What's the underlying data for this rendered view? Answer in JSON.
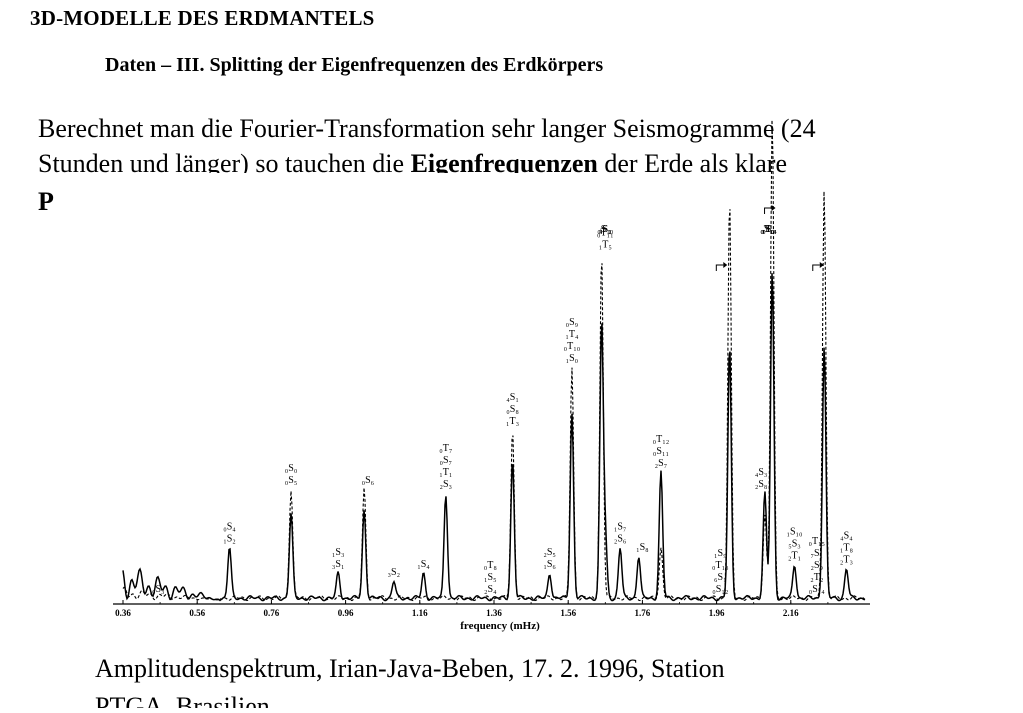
{
  "slide": {
    "title": "3D-MODELLE DES ERDMANTELS",
    "subtitle": "Daten – III. Splitting der Eigenfrequenzen des Erdkörpers"
  },
  "body": {
    "line1": "Berechnet man die Fourier-Transformation sehr langer Seismogramme (24",
    "line2_pre": "Stunden und länger) so tauchen die ",
    "line2_bold": "Eigenfrequenzen",
    "line2_post": " der Erde als klare",
    "line3_bold": "P"
  },
  "caption": {
    "line1": "Amplitudenspektrum, Irian-Java-Beben, 17. 2. 1996, Station",
    "line2": "PTGA, Brasilien"
  },
  "chart_data": {
    "type": "line",
    "xlabel": "frequency (mHz)",
    "x_ticks": [
      "0.36",
      "0.56",
      "0.76",
      "0.96",
      "1.16",
      "1.36",
      "1.56",
      "1.76",
      "1.96",
      "2.16"
    ],
    "xlim": [
      0.36,
      2.36
    ],
    "series": [
      {
        "style": "solid",
        "peaks": [
          {
            "f": 0.647,
            "amp": 0.12
          },
          {
            "f": 0.813,
            "amp": 0.2
          },
          {
            "f": 0.94,
            "amp": 0.06
          },
          {
            "f": 1.01,
            "amp": 0.21
          },
          {
            "f": 1.09,
            "amp": 0.04
          },
          {
            "f": 1.17,
            "amp": 0.06
          },
          {
            "f": 1.23,
            "amp": 0.25
          },
          {
            "f": 1.41,
            "amp": 0.33
          },
          {
            "f": 1.57,
            "amp": 0.44
          },
          {
            "f": 1.65,
            "amp": 0.65
          },
          {
            "f": 1.81,
            "amp": 0.3
          },
          {
            "f": 1.995,
            "amp": 0.6
          },
          {
            "f": 2.11,
            "amp": 0.78
          },
          {
            "f": 2.25,
            "amp": 0.6
          },
          {
            "f": 2.09,
            "amp": 0.25
          },
          {
            "f": 1.7,
            "amp": 0.12
          },
          {
            "f": 1.66,
            "amp": 0.14
          },
          {
            "f": 1.75,
            "amp": 0.1
          },
          {
            "f": 1.51,
            "amp": 0.06
          },
          {
            "f": 2.17,
            "amp": 0.08
          },
          {
            "f": 2.31,
            "amp": 0.07
          }
        ]
      },
      {
        "style": "dashed",
        "peaks": [
          {
            "f": 0.813,
            "amp": 0.26
          },
          {
            "f": 1.01,
            "amp": 0.26
          },
          {
            "f": 1.41,
            "amp": 0.4
          },
          {
            "f": 1.57,
            "amp": 0.55
          },
          {
            "f": 1.65,
            "amp": 0.82
          },
          {
            "f": 1.995,
            "amp": 0.95
          },
          {
            "f": 2.11,
            "amp": 1.15
          },
          {
            "f": 2.25,
            "amp": 0.98
          },
          {
            "f": 1.81,
            "amp": 0.12
          },
          {
            "f": 2.09,
            "amp": 0.2
          }
        ]
      }
    ],
    "peak_labels": [
      {
        "f": 0.455,
        "lines": [
          "₀S₃"
        ]
      },
      {
        "f": 0.647,
        "lines": [
          "₀S₄",
          "₁S₂"
        ]
      },
      {
        "f": 0.813,
        "lines": [
          "₀S₀",
          "₀S₅"
        ]
      },
      {
        "f": 0.94,
        "lines": [
          "₁S₃",
          "₃S₁"
        ]
      },
      {
        "f": 1.02,
        "lines": [
          "₀S₆"
        ]
      },
      {
        "f": 1.09,
        "lines": [
          "₃S₂"
        ]
      },
      {
        "f": 1.17,
        "lines": [
          "₁S₄"
        ]
      },
      {
        "f": 1.23,
        "lines": [
          "₀T₇",
          "₀S₇",
          "₁T₁",
          "₂S₃"
        ]
      },
      {
        "f": 1.35,
        "lines": [
          "₀T₈",
          "₁S₅",
          "₂S₄"
        ]
      },
      {
        "f": 1.41,
        "lines": [
          "₄S₁",
          "₀S₈",
          "₁T₃"
        ]
      },
      {
        "f": 1.51,
        "lines": [
          "₂S₅",
          "₁S₆"
        ]
      },
      {
        "f": 1.57,
        "lines": [
          "₀S₉",
          "₁T₄",
          "₀T₁₀",
          "₁S₀"
        ]
      },
      {
        "f": 1.66,
        "lines": [
          "₅S₁",
          "₄S₂",
          "₀S₁₀",
          "₀T₁₁",
          "₁T₅"
        ]
      },
      {
        "f": 1.7,
        "lines": [
          "₁S₇",
          "₂S₆"
        ]
      },
      {
        "f": 1.76,
        "lines": [
          "₁S₈"
        ]
      },
      {
        "f": 1.81,
        "lines": [
          "₀T₁₂",
          "₀S₁₁",
          "₂S₇"
        ]
      },
      {
        "f": 1.97,
        "lines": [
          "₁S₉",
          "₀T₁₃",
          "₆S₁",
          "₀S₁₂"
        ]
      },
      {
        "f": 2.08,
        "lines": [
          "₄S₃",
          "₂S₈"
        ]
      },
      {
        "f": 2.1,
        "lines": [
          "₅S₂",
          "₀T₁₄",
          "₁T₇",
          "₀S₁₃"
        ]
      },
      {
        "f": 2.17,
        "lines": [
          "₁S₁₀",
          "₅S₃",
          "₂T₁"
        ]
      },
      {
        "f": 2.23,
        "lines": [
          "₀T₁₅",
          "₇S₁",
          "₂S₉",
          "₂T₂",
          "₀S₁₄"
        ]
      },
      {
        "f": 2.31,
        "lines": [
          "₄S₄",
          "₁T₈",
          "₂T₃"
        ]
      }
    ]
  }
}
